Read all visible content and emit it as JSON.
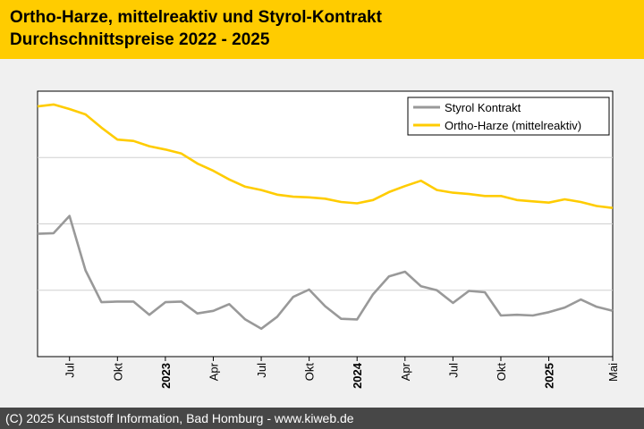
{
  "header": {
    "title_line1": "Ortho-Harze, mittelreaktiv und Styrol-Kontrakt",
    "title_line2": "Durchschnittspreise 2022 - 2025"
  },
  "footer": {
    "copyright": "(C) 2025 Kunststoff Information, Bad Homburg - www.kiweb.de"
  },
  "colors": {
    "header_bg": "#ffcc00",
    "footer_bg": "#474747",
    "styrol": "#999999",
    "ortho": "#ffcc00"
  },
  "chart_data": {
    "type": "line",
    "title": "",
    "xlabel": "",
    "ylabel": "",
    "grid": true,
    "legend_position": "top-right",
    "ylim": [
      0,
      4
    ],
    "x": [
      "2022-05",
      "2022-06",
      "2022-07",
      "2022-08",
      "2022-09",
      "2022-10",
      "2022-11",
      "2022-12",
      "2023-01",
      "2023-02",
      "2023-03",
      "2023-04",
      "2023-05",
      "2023-06",
      "2023-07",
      "2023-08",
      "2023-09",
      "2023-10",
      "2023-11",
      "2023-12",
      "2024-01",
      "2024-02",
      "2024-03",
      "2024-04",
      "2024-05",
      "2024-06",
      "2024-07",
      "2024-08",
      "2024-09",
      "2024-10",
      "2024-11",
      "2024-12",
      "2025-01",
      "2025-02",
      "2025-03",
      "2025-04",
      "2025-05"
    ],
    "x_tick_labels": [
      {
        "x": "2022-07",
        "label": "Jul",
        "bold": false
      },
      {
        "x": "2022-10",
        "label": "Okt",
        "bold": false
      },
      {
        "x": "2023-01",
        "label": "2023",
        "bold": true
      },
      {
        "x": "2023-04",
        "label": "Apr",
        "bold": false
      },
      {
        "x": "2023-07",
        "label": "Jul",
        "bold": false
      },
      {
        "x": "2023-10",
        "label": "Okt",
        "bold": false
      },
      {
        "x": "2024-01",
        "label": "2024",
        "bold": true
      },
      {
        "x": "2024-04",
        "label": "Apr",
        "bold": false
      },
      {
        "x": "2024-07",
        "label": "Jul",
        "bold": false
      },
      {
        "x": "2024-10",
        "label": "Okt",
        "bold": false
      },
      {
        "x": "2025-01",
        "label": "2025",
        "bold": true
      },
      {
        "x": "2025-05",
        "label": "Mai",
        "bold": false
      }
    ],
    "series": [
      {
        "name": "Styrol Kontrakt",
        "color": "#999999",
        "values": [
          1.85,
          1.86,
          2.12,
          1.3,
          0.82,
          0.83,
          0.83,
          0.63,
          0.82,
          0.83,
          0.65,
          0.69,
          0.79,
          0.56,
          0.42,
          0.6,
          0.9,
          1.01,
          0.76,
          0.57,
          0.56,
          0.94,
          1.21,
          1.28,
          1.06,
          1.0,
          0.81,
          0.99,
          0.97,
          0.62,
          0.63,
          0.62,
          0.67,
          0.74,
          0.86,
          0.75,
          0.69
        ]
      },
      {
        "name": "Ortho-Harze (mittelreaktiv)",
        "color": "#ffcc00",
        "values": [
          3.77,
          3.8,
          3.73,
          3.65,
          3.45,
          3.27,
          3.25,
          3.17,
          3.12,
          3.06,
          2.91,
          2.8,
          2.67,
          2.56,
          2.51,
          2.44,
          2.41,
          2.4,
          2.38,
          2.33,
          2.31,
          2.36,
          2.48,
          2.57,
          2.65,
          2.51,
          2.47,
          2.45,
          2.42,
          2.42,
          2.36,
          2.34,
          2.32,
          2.37,
          2.33,
          2.27,
          2.24
        ]
      }
    ]
  }
}
